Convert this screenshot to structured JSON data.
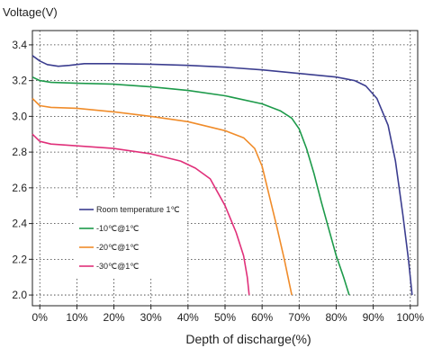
{
  "chart_data": {
    "type": "line",
    "title": "",
    "ylabel": "Voltage(V)",
    "xlabel": "Depth of discharge(%)",
    "xlim": [
      -2,
      102
    ],
    "ylim": [
      1.94,
      3.48
    ],
    "x_ticks": [
      0,
      10,
      20,
      30,
      40,
      50,
      60,
      70,
      80,
      90,
      100
    ],
    "x_tick_labels": [
      "0%",
      "10%",
      "20%",
      "30%",
      "40%",
      "50%",
      "60%",
      "70%",
      "80%",
      "90%",
      "100%"
    ],
    "y_ticks": [
      2.0,
      2.2,
      2.4,
      2.6,
      2.8,
      3.0,
      3.2,
      3.4
    ],
    "y_tick_labels": [
      "2.0",
      "2.2",
      "2.4",
      "2.6",
      "2.8",
      "3.0",
      "3.2",
      "3.4"
    ],
    "grid": true,
    "legend_position": "lower-left",
    "series": [
      {
        "name": "Room temperature 1℃",
        "color": "#3b3d8f",
        "points": [
          [
            -2,
            3.34
          ],
          [
            0,
            3.31
          ],
          [
            2,
            3.29
          ],
          [
            5,
            3.28
          ],
          [
            8,
            3.285
          ],
          [
            12,
            3.295
          ],
          [
            20,
            3.295
          ],
          [
            30,
            3.292
          ],
          [
            40,
            3.285
          ],
          [
            50,
            3.275
          ],
          [
            60,
            3.26
          ],
          [
            70,
            3.24
          ],
          [
            80,
            3.22
          ],
          [
            85,
            3.2
          ],
          [
            88,
            3.17
          ],
          [
            91,
            3.1
          ],
          [
            94,
            2.95
          ],
          [
            96,
            2.75
          ],
          [
            98,
            2.45
          ],
          [
            99.5,
            2.2
          ],
          [
            100.5,
            2.0
          ]
        ]
      },
      {
        "name": "-10℃@1℃",
        "color": "#1d9a4a",
        "points": [
          [
            -2,
            3.22
          ],
          [
            0,
            3.2
          ],
          [
            3,
            3.19
          ],
          [
            10,
            3.185
          ],
          [
            20,
            3.18
          ],
          [
            30,
            3.165
          ],
          [
            40,
            3.145
          ],
          [
            50,
            3.115
          ],
          [
            60,
            3.07
          ],
          [
            65,
            3.03
          ],
          [
            68,
            2.99
          ],
          [
            70,
            2.93
          ],
          [
            72,
            2.82
          ],
          [
            74,
            2.68
          ],
          [
            76,
            2.52
          ],
          [
            78,
            2.37
          ],
          [
            80,
            2.22
          ],
          [
            82,
            2.1
          ],
          [
            83.5,
            2.0
          ]
        ]
      },
      {
        "name": "-20℃@1℃",
        "color": "#f08c2a",
        "points": [
          [
            -2,
            3.1
          ],
          [
            0,
            3.06
          ],
          [
            3,
            3.05
          ],
          [
            10,
            3.045
          ],
          [
            20,
            3.025
          ],
          [
            30,
            3.0
          ],
          [
            40,
            2.97
          ],
          [
            50,
            2.92
          ],
          [
            55,
            2.88
          ],
          [
            58,
            2.82
          ],
          [
            60,
            2.72
          ],
          [
            62,
            2.55
          ],
          [
            64,
            2.38
          ],
          [
            66,
            2.2
          ],
          [
            68,
            2.0
          ]
        ]
      },
      {
        "name": "-30℃@1℃",
        "color": "#e0307a",
        "points": [
          [
            -2,
            2.9
          ],
          [
            0,
            2.86
          ],
          [
            3,
            2.845
          ],
          [
            10,
            2.835
          ],
          [
            20,
            2.82
          ],
          [
            30,
            2.79
          ],
          [
            38,
            2.75
          ],
          [
            42,
            2.71
          ],
          [
            46,
            2.65
          ],
          [
            50,
            2.5
          ],
          [
            53,
            2.35
          ],
          [
            55,
            2.22
          ],
          [
            56,
            2.1
          ],
          [
            56.5,
            2.0
          ]
        ]
      }
    ]
  }
}
